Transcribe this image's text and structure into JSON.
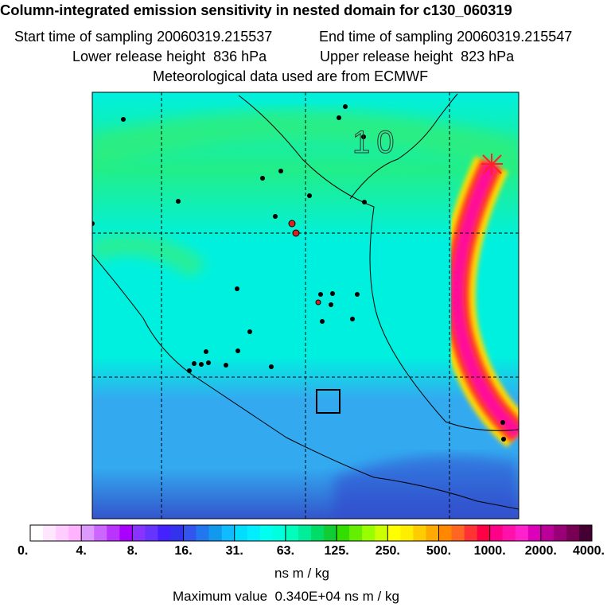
{
  "header": {
    "title": "Column-integrated emission sensitivity in nested domain for c130_060319",
    "start_label": "Start time of sampling",
    "start_value": "20060319.215537",
    "end_label": "End time of sampling",
    "end_value": "20060319.215547",
    "lower_label": "Lower release height",
    "lower_value": "836 hPa",
    "upper_label": "Upper release height",
    "upper_value": "823 hPa",
    "met_line": "Meteorological data used are from ECMWF"
  },
  "map": {
    "day_label": "10",
    "colors": {
      "very_low": "#3355cc",
      "low": "#33aaf0",
      "mid": "#00f0e0",
      "green": "#22ee88",
      "plume_edge": "#ffcc00",
      "plume_mid": "#ff3344",
      "plume_core": "#ff1199",
      "release_marker": "#ff2222"
    }
  },
  "chart_data": {
    "type": "heatmap",
    "title": "Column-integrated emission sensitivity in nested domain for c130_060319",
    "colorbar": {
      "ticks": [
        "0.",
        "4.",
        "8.",
        "16.",
        "31.",
        "63.",
        "125.",
        "250.",
        "500.",
        "1000.",
        "2000.",
        "4000."
      ],
      "tick_values": [
        0,
        4,
        8,
        16,
        31,
        63,
        125,
        250,
        500,
        1000,
        2000,
        4000
      ],
      "colors": [
        "#ffffff",
        "#ffe6ff",
        "#ffccff",
        "#ffb3ff",
        "#dd99ff",
        "#cc66ff",
        "#bb33ff",
        "#aa00ff",
        "#8833ff",
        "#6633ff",
        "#4422ff",
        "#3333ee",
        "#3355ee",
        "#2277ee",
        "#1199ee",
        "#11bbff",
        "#00ddff",
        "#00eeff",
        "#00ffee",
        "#00ffdd",
        "#00ffbb",
        "#00ee99",
        "#00dd66",
        "#11cc33",
        "#33dd00",
        "#66ee00",
        "#99ff00",
        "#ccff00",
        "#ffff00",
        "#ffee00",
        "#ffcc00",
        "#ffaa00",
        "#ff8800",
        "#ff6622",
        "#ff3333",
        "#ff0044",
        "#ff0088",
        "#ff11aa",
        "#ff22cc",
        "#dd00bb",
        "#bb0099",
        "#990077",
        "#770055",
        "#440033"
      ]
    },
    "units": "ns m / kg",
    "max_value_label": "Maximum value",
    "max_value": "0.340E+04 ns m / kg"
  }
}
